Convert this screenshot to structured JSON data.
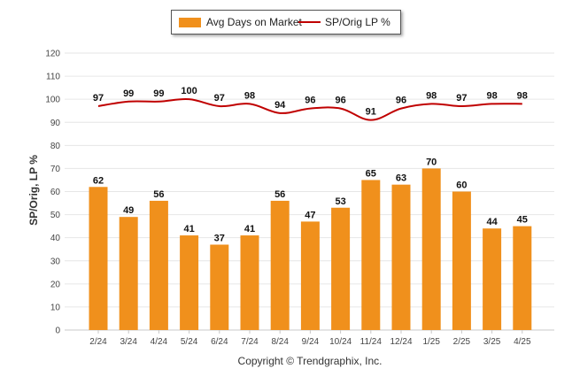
{
  "chart_data": {
    "type": "bar",
    "categories": [
      "2/24",
      "3/24",
      "4/24",
      "5/24",
      "6/24",
      "7/24",
      "8/24",
      "9/24",
      "10/24",
      "11/24",
      "12/24",
      "1/25",
      "2/25",
      "3/25",
      "4/25"
    ],
    "series": [
      {
        "name": "Avg Days on Market",
        "type": "bar",
        "color": "#F0901C",
        "values": [
          62,
          49,
          56,
          41,
          37,
          41,
          56,
          47,
          53,
          65,
          63,
          70,
          60,
          44,
          45
        ]
      },
      {
        "name": "SP/Orig LP %",
        "type": "line",
        "color": "#C00000",
        "values": [
          97,
          99,
          99,
          100,
          97,
          98,
          94,
          96,
          96,
          91,
          96,
          98,
          97,
          98,
          98
        ]
      }
    ],
    "title": "",
    "xlabel": "",
    "ylabel": "SP/Orig, LP %",
    "ylim": [
      0,
      120
    ],
    "yticks": [
      0,
      10,
      20,
      30,
      40,
      50,
      60,
      70,
      80,
      90,
      100,
      110,
      120
    ],
    "grid": true,
    "legend_position": "top-center"
  },
  "footer": {
    "copyright": "Copyright © Trendgraphix, Inc."
  }
}
